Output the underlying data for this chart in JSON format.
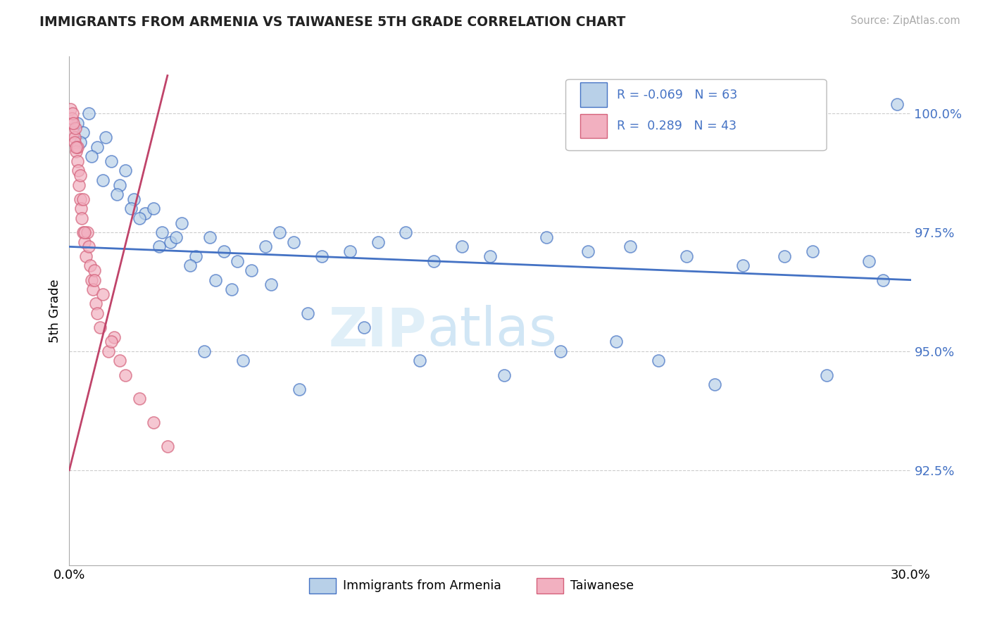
{
  "title": "IMMIGRANTS FROM ARMENIA VS TAIWANESE 5TH GRADE CORRELATION CHART",
  "source": "Source: ZipAtlas.com",
  "ylabel": "5th Grade",
  "x_min": 0.0,
  "x_max": 30.0,
  "y_min": 90.5,
  "y_max": 101.2,
  "y_ticks": [
    92.5,
    95.0,
    97.5,
    100.0
  ],
  "y_tick_labels": [
    "92.5%",
    "95.0%",
    "97.5%",
    "100.0%"
  ],
  "legend_entry1_r": "-0.069",
  "legend_entry1_n": "63",
  "legend_entry2_r": "0.289",
  "legend_entry2_n": "43",
  "legend_entry1_label": "Immigrants from Armenia",
  "legend_entry2_label": "Taiwanese",
  "blue_fill": "#b8d0e8",
  "blue_edge": "#4472c4",
  "pink_fill": "#f2b0c0",
  "pink_edge": "#d4607a",
  "blue_line": "#4472c4",
  "pink_line": "#c0446a",
  "grid_color": "#cccccc",
  "watermark_zip": "ZIP",
  "watermark_atlas": "atlas",
  "scatter_blue_x": [
    0.3,
    0.5,
    0.7,
    1.0,
    1.3,
    1.5,
    1.8,
    2.0,
    2.3,
    2.7,
    3.0,
    3.3,
    3.6,
    4.0,
    4.5,
    5.0,
    5.5,
    6.0,
    7.0,
    7.5,
    8.0,
    9.0,
    10.0,
    11.0,
    12.0,
    13.0,
    14.0,
    15.0,
    17.0,
    18.5,
    20.0,
    22.0,
    24.0,
    25.5,
    26.5,
    28.5,
    0.4,
    0.8,
    1.2,
    1.7,
    2.2,
    2.5,
    3.2,
    3.8,
    4.3,
    5.2,
    5.8,
    6.5,
    7.2,
    8.5,
    10.5,
    12.5,
    15.5,
    17.5,
    19.5,
    21.0,
    23.0,
    27.0,
    29.0,
    4.8,
    6.2,
    8.2,
    29.5
  ],
  "scatter_blue_y": [
    99.8,
    99.6,
    100.0,
    99.3,
    99.5,
    99.0,
    98.5,
    98.8,
    98.2,
    97.9,
    98.0,
    97.5,
    97.3,
    97.7,
    97.0,
    97.4,
    97.1,
    96.9,
    97.2,
    97.5,
    97.3,
    97.0,
    97.1,
    97.3,
    97.5,
    96.9,
    97.2,
    97.0,
    97.4,
    97.1,
    97.2,
    97.0,
    96.8,
    97.0,
    97.1,
    96.9,
    99.4,
    99.1,
    98.6,
    98.3,
    98.0,
    97.8,
    97.2,
    97.4,
    96.8,
    96.5,
    96.3,
    96.7,
    96.4,
    95.8,
    95.5,
    94.8,
    94.5,
    95.0,
    95.2,
    94.8,
    94.3,
    94.5,
    96.5,
    95.0,
    94.8,
    94.2,
    100.2
  ],
  "scatter_pink_x": [
    0.05,
    0.08,
    0.1,
    0.12,
    0.15,
    0.18,
    0.2,
    0.22,
    0.25,
    0.28,
    0.3,
    0.32,
    0.35,
    0.38,
    0.4,
    0.42,
    0.45,
    0.48,
    0.5,
    0.55,
    0.6,
    0.65,
    0.7,
    0.75,
    0.8,
    0.85,
    0.9,
    0.95,
    1.0,
    1.1,
    1.2,
    1.4,
    1.6,
    1.8,
    2.0,
    2.5,
    3.0,
    3.5,
    0.15,
    0.25,
    0.55,
    0.9,
    1.5
  ],
  "scatter_pink_y": [
    100.1,
    99.8,
    99.9,
    100.0,
    99.6,
    99.5,
    99.4,
    99.7,
    99.2,
    99.0,
    99.3,
    98.8,
    98.5,
    98.2,
    98.7,
    98.0,
    97.8,
    97.5,
    98.2,
    97.3,
    97.0,
    97.5,
    97.2,
    96.8,
    96.5,
    96.3,
    96.7,
    96.0,
    95.8,
    95.5,
    96.2,
    95.0,
    95.3,
    94.8,
    94.5,
    94.0,
    93.5,
    93.0,
    99.8,
    99.3,
    97.5,
    96.5,
    95.2
  ],
  "blue_trendline_x0": 0.0,
  "blue_trendline_x1": 30.0,
  "blue_trendline_y0": 97.2,
  "blue_trendline_y1": 96.5,
  "pink_trendline_x0": 0.0,
  "pink_trendline_x1": 3.5,
  "pink_trendline_y0": 92.5,
  "pink_trendline_y1": 100.8
}
